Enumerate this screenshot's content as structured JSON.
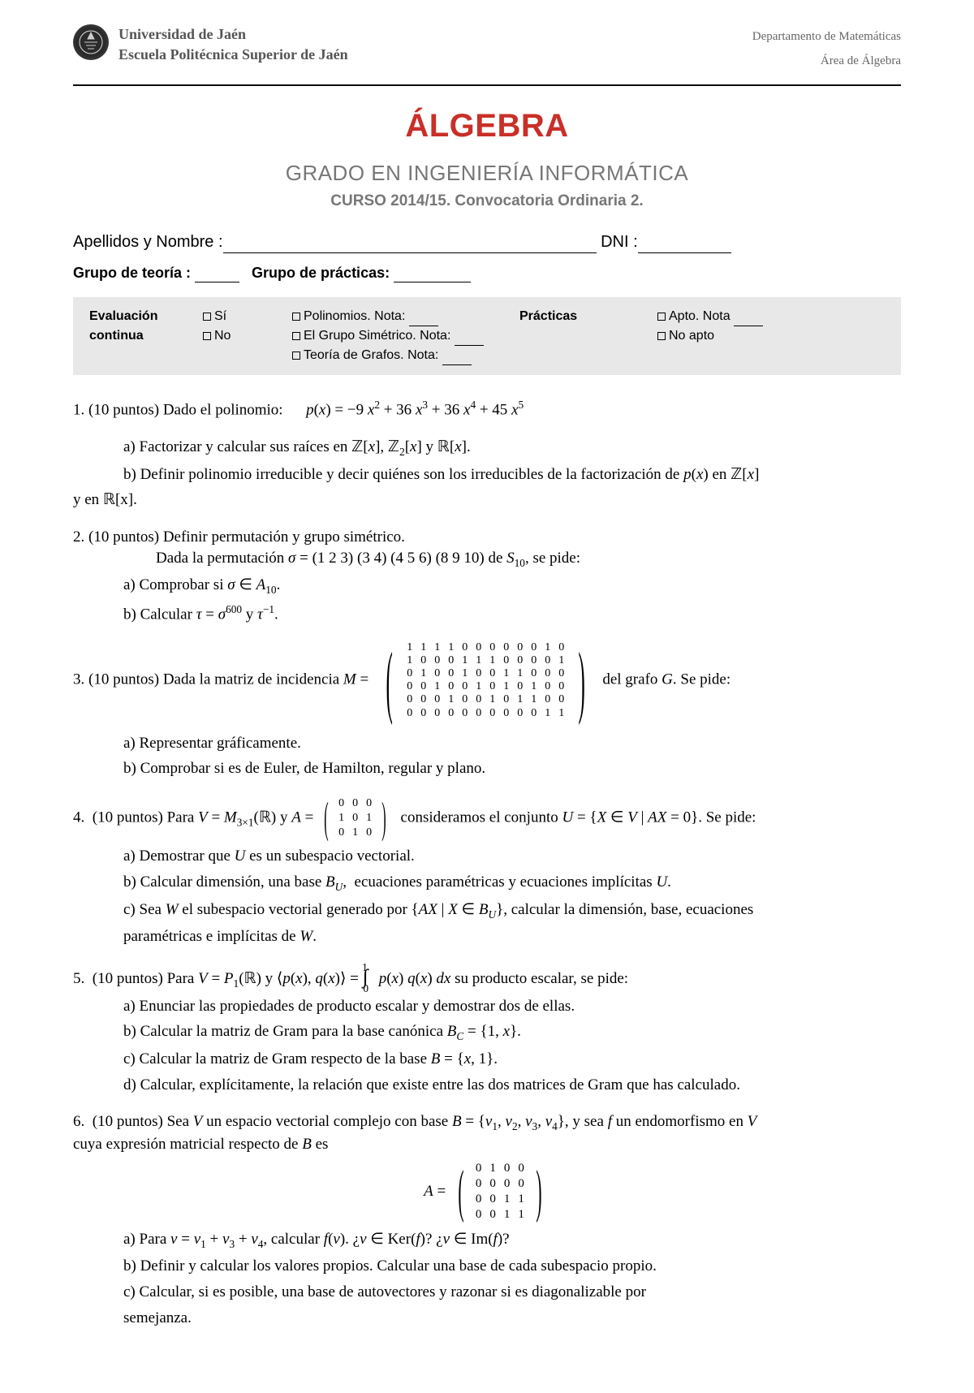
{
  "header": {
    "university": "Universidad de Jaén",
    "school": "Escuela Politécnica Superior de Jaén",
    "department": "Departamento de Matemáticas",
    "area": "Área de Álgebra"
  },
  "titles": {
    "main": "ÁLGEBRA",
    "degree": "GRADO EN INGENIERÍA INFORMÁTICA",
    "course": "CURSO 2014/15. Convocatoria Ordinaria 2."
  },
  "form": {
    "name_label": "Apellidos  y Nombre :",
    "dni_label": "DNI :",
    "theory_group": "Grupo de teoría :",
    "practice_group": "Grupo de prácticas:"
  },
  "eval": {
    "title1": "Evaluación",
    "title2": "continua",
    "yes": "Sí",
    "no": "No",
    "poly": "Polinomios. Nota:",
    "sym": "El Grupo Simétrico. Nota:",
    "graph": "Teoría de Grafos. Nota:",
    "practices": "Prácticas",
    "apto": "Apto. Nota",
    "noapto": "No apto"
  },
  "q1": {
    "stem": "1. (10 puntos) Dado el polinomio:",
    "poly_text": "p(x) = −9 x² + 36 x³ + 36 x⁴ + 45 x⁵",
    "a": "a) Factorizar y calcular sus raíces en ℤ[x], ℤ₂[x] y ℝ[x].",
    "b_pre": "b) Definir polinomio irreducible y decir quiénes son los irreducibles de la factorización de ",
    "b_pxen": " en ℤ[x]",
    "b_end": "y en ℝ[x]."
  },
  "q2": {
    "stem": "2.  (10 puntos) Definir permutación y grupo simétrico.",
    "perm_pre": "Dada la permutación ",
    "perm_sigma": "σ = (1 2 3) (3 4) (4 5 6) (8 9 10) de S",
    "perm_post": ", se pide:",
    "a": "a) Comprobar si σ ∈ A₁₀.",
    "b": "b) Calcular τ = σ⁶⁰⁰ y τ⁻¹."
  },
  "q3": {
    "stem_pre": "3.  (10 puntos) Dada la matriz de incidencia ",
    "stem_post": " del grafo G. Se pide:",
    "matrix": [
      [
        1,
        1,
        1,
        1,
        0,
        0,
        0,
        0,
        0,
        0,
        1,
        0
      ],
      [
        1,
        0,
        0,
        0,
        1,
        1,
        1,
        0,
        0,
        0,
        0,
        1
      ],
      [
        0,
        1,
        0,
        0,
        1,
        0,
        0,
        1,
        1,
        0,
        0,
        0
      ],
      [
        0,
        0,
        1,
        0,
        0,
        1,
        0,
        1,
        0,
        1,
        0,
        0
      ],
      [
        0,
        0,
        0,
        1,
        0,
        0,
        1,
        0,
        1,
        1,
        0,
        0
      ],
      [
        0,
        0,
        0,
        0,
        0,
        0,
        0,
        0,
        0,
        0,
        1,
        1
      ]
    ],
    "a": "a) Representar gráficamente.",
    "b": "b) Comprobar si es de Euler, de Hamilton, regular y plano."
  },
  "q4": {
    "stem_pre": "4.  (10 puntos) Para V = M",
    "stem_mid": "(ℝ) y A = ",
    "stem_post": "  consideramos el conjunto U = {X ∈ V | AX = 0}. Se pide:",
    "matrix": [
      [
        0,
        0,
        0
      ],
      [
        1,
        0,
        1
      ],
      [
        0,
        1,
        0
      ]
    ],
    "a": "a) Demostrar que U es un subespacio vectorial.",
    "b": "b) Calcular dimensión, una base Bᵤ,  ecuaciones paramétricas y ecuaciones implícitas U.",
    "c": "c) Sea W el subespacio vectorial generado por {AX | X ∈ Bᵤ}, calcular la dimensión, base, ecuaciones",
    "c2": "paramétricas e implícitas de W."
  },
  "q5": {
    "stem_pre": "5.  (10 puntos) Para V = P₁(ℝ) y ⟨p(x), q(x)⟩ = ",
    "stem_int": "∫",
    "stem_bounds0": "0",
    "stem_bounds1": "1",
    "stem_post": " p(x) q(x) dx su producto escalar, se pide:",
    "a": "a) Enunciar las propiedades de producto escalar y demostrar dos de ellas.",
    "b": "b) Calcular la matriz de Gram para la base canónica B_C = {1, x}.",
    "c": "c) Calcular la matriz de Gram respecto de la base B = {x, 1}.",
    "d": "d) Calcular, explícitamente, la relación que existe entre las dos matrices de Gram que has calculado."
  },
  "q6": {
    "stem": "6.  (10 puntos) Sea V un espacio vectorial complejo con base B = {v₁, v₂, v₃, v₄}, y sea f un endomorfismo en V",
    "stem2": "cuya expresión matricial respecto de B es",
    "matrix": [
      [
        0,
        1,
        0,
        0
      ],
      [
        0,
        0,
        0,
        0
      ],
      [
        0,
        0,
        1,
        1
      ],
      [
        0,
        0,
        1,
        1
      ]
    ],
    "a": "a) Para v = v₁ + v₃ + v₄, calcular f(v). ¿v ∈ Ker(f)? ¿v ∈ Im(f)?",
    "b": "b) Definir y calcular los valores propios. Calcular una base de cada subespacio propio.",
    "c": "c) Calcular, si es posible, una base de autovectores y razonar si es diagonalizable por",
    "c2": "semejanza."
  }
}
